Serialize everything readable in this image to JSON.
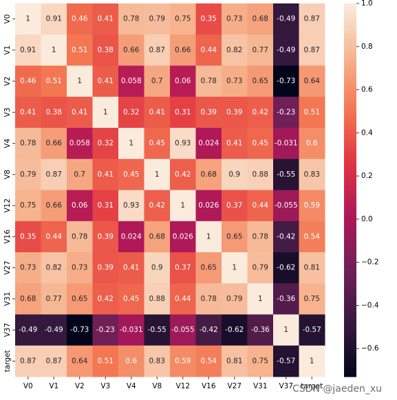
{
  "chart_data": {
    "type": "heatmap",
    "x_categories": [
      "V0",
      "V1",
      "V2",
      "V3",
      "V4",
      "V8",
      "V12",
      "V16",
      "V27",
      "V31",
      "V37",
      "target"
    ],
    "y_categories": [
      "V0",
      "V1",
      "V2",
      "V3",
      "V4",
      "V8",
      "V12",
      "V16",
      "V27",
      "V31",
      "V37",
      "target"
    ],
    "values": [
      [
        1,
        0.91,
        0.46,
        0.41,
        0.78,
        0.79,
        0.75,
        0.35,
        0.73,
        0.68,
        -0.49,
        0.87
      ],
      [
        0.91,
        1,
        0.51,
        0.38,
        0.66,
        0.87,
        0.66,
        0.44,
        0.82,
        0.77,
        -0.49,
        0.87
      ],
      [
        0.46,
        0.51,
        1,
        0.41,
        0.058,
        0.7,
        0.06,
        0.78,
        0.73,
        0.65,
        -0.73,
        0.64
      ],
      [
        0.41,
        0.38,
        0.41,
        1,
        0.32,
        0.41,
        0.31,
        0.39,
        0.39,
        0.42,
        -0.23,
        0.51
      ],
      [
        0.78,
        0.66,
        0.058,
        0.32,
        1,
        0.45,
        0.93,
        0.024,
        0.41,
        0.45,
        -0.031,
        0.6
      ],
      [
        0.79,
        0.87,
        0.7,
        0.41,
        0.45,
        1,
        0.42,
        0.68,
        0.9,
        0.88,
        -0.55,
        0.83
      ],
      [
        0.75,
        0.66,
        0.06,
        0.31,
        0.93,
        0.42,
        1,
        0.026,
        0.37,
        0.44,
        -0.055,
        0.59
      ],
      [
        0.35,
        0.44,
        0.78,
        0.39,
        0.024,
        0.68,
        0.026,
        1,
        0.65,
        0.78,
        -0.42,
        0.54
      ],
      [
        0.73,
        0.82,
        0.73,
        0.39,
        0.41,
        0.9,
        0.37,
        0.65,
        1,
        0.79,
        -0.62,
        0.81
      ],
      [
        0.68,
        0.77,
        0.65,
        0.42,
        0.45,
        0.88,
        0.44,
        0.78,
        0.79,
        1,
        -0.36,
        0.75
      ],
      [
        -0.49,
        -0.49,
        -0.73,
        -0.23,
        -0.031,
        -0.55,
        -0.055,
        -0.42,
        -0.62,
        -0.36,
        1,
        -0.57
      ],
      [
        0.87,
        0.87,
        0.64,
        0.51,
        0.6,
        0.83,
        0.59,
        0.54,
        0.81,
        0.75,
        -0.57,
        1
      ]
    ],
    "colormap": [
      "#03051a",
      "#35193e",
      "#701f57",
      "#ad1759",
      "#e13342",
      "#f37651",
      "#f6b48f",
      "#faebdd"
    ],
    "zlim": [
      -0.73,
      1
    ],
    "zticks": [
      {
        "value": 1,
        "label": "1.0"
      },
      0.8,
      0.6,
      0.4,
      0.2,
      {
        "value": 0,
        "label": "0.0"
      },
      {
        "value": -0.2,
        "label": "−0.2"
      },
      {
        "value": -0.4,
        "label": "−0.4"
      },
      {
        "value": -0.6,
        "label": "−0.6"
      }
    ],
    "watermark": "CSDN @jaeden_xu"
  }
}
